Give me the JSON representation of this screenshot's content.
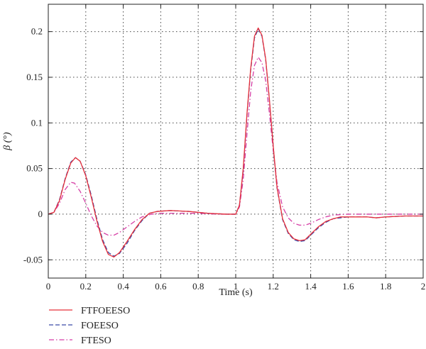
{
  "chart_data": {
    "type": "line",
    "title": "",
    "xlabel": "Time (s)",
    "ylabel": "β (°)",
    "xlim": [
      0,
      2
    ],
    "ylim": [
      -0.07,
      0.23
    ],
    "grid": true,
    "grid_style": "dotted",
    "legend_position": "bottom-left, below plot",
    "x_ticks": [
      "0",
      "0.2",
      "0.4",
      "0.6",
      "0.8",
      "1",
      "1.2",
      "1.4",
      "1.6",
      "1.8",
      "2"
    ],
    "y_ticks": [
      "-0.05",
      "0",
      "0.05",
      "0.1",
      "0.15",
      "0.2"
    ],
    "series": [
      {
        "name": "FTFOEESO",
        "color": "#e8303a",
        "dash": "solid",
        "points": [
          [
            0,
            0
          ],
          [
            0.03,
            0.002
          ],
          [
            0.06,
            0.015
          ],
          [
            0.09,
            0.038
          ],
          [
            0.12,
            0.056
          ],
          [
            0.145,
            0.062
          ],
          [
            0.17,
            0.058
          ],
          [
            0.2,
            0.042
          ],
          [
            0.23,
            0.018
          ],
          [
            0.26,
            -0.008
          ],
          [
            0.29,
            -0.03
          ],
          [
            0.32,
            -0.044
          ],
          [
            0.35,
            -0.047
          ],
          [
            0.38,
            -0.042
          ],
          [
            0.42,
            -0.03
          ],
          [
            0.46,
            -0.017
          ],
          [
            0.5,
            -0.006
          ],
          [
            0.54,
            0.001
          ],
          [
            0.58,
            0.003
          ],
          [
            0.65,
            0.004
          ],
          [
            0.75,
            0.003
          ],
          [
            0.85,
            0.001
          ],
          [
            0.95,
            0
          ],
          [
            1.0,
            0
          ],
          [
            1.02,
            0.01
          ],
          [
            1.04,
            0.05
          ],
          [
            1.06,
            0.11
          ],
          [
            1.08,
            0.16
          ],
          [
            1.1,
            0.195
          ],
          [
            1.12,
            0.204
          ],
          [
            1.14,
            0.196
          ],
          [
            1.16,
            0.17
          ],
          [
            1.18,
            0.125
          ],
          [
            1.2,
            0.075
          ],
          [
            1.22,
            0.03
          ],
          [
            1.25,
            -0.005
          ],
          [
            1.28,
            -0.02
          ],
          [
            1.31,
            -0.027
          ],
          [
            1.34,
            -0.029
          ],
          [
            1.37,
            -0.028
          ],
          [
            1.4,
            -0.022
          ],
          [
            1.44,
            -0.014
          ],
          [
            1.48,
            -0.008
          ],
          [
            1.52,
            -0.005
          ],
          [
            1.56,
            -0.003
          ],
          [
            1.6,
            -0.003
          ],
          [
            1.65,
            -0.003
          ],
          [
            1.7,
            -0.003
          ],
          [
            1.75,
            -0.004
          ],
          [
            1.8,
            -0.003
          ],
          [
            1.9,
            -0.002
          ],
          [
            2.0,
            -0.002
          ]
        ]
      },
      {
        "name": "FOEESO",
        "color": "#3a4aa8",
        "dash": "dashed",
        "points": [
          [
            0,
            0
          ],
          [
            0.03,
            0.002
          ],
          [
            0.06,
            0.016
          ],
          [
            0.09,
            0.039
          ],
          [
            0.12,
            0.057
          ],
          [
            0.145,
            0.062
          ],
          [
            0.17,
            0.058
          ],
          [
            0.2,
            0.043
          ],
          [
            0.23,
            0.02
          ],
          [
            0.26,
            -0.006
          ],
          [
            0.29,
            -0.028
          ],
          [
            0.32,
            -0.042
          ],
          [
            0.35,
            -0.046
          ],
          [
            0.38,
            -0.043
          ],
          [
            0.42,
            -0.032
          ],
          [
            0.46,
            -0.018
          ],
          [
            0.5,
            -0.007
          ],
          [
            0.54,
            0.001
          ],
          [
            0.58,
            0.003
          ],
          [
            0.65,
            0.004
          ],
          [
            0.75,
            0.003
          ],
          [
            0.85,
            0.001
          ],
          [
            0.95,
            0
          ],
          [
            1.0,
            0
          ],
          [
            1.02,
            0.01
          ],
          [
            1.04,
            0.048
          ],
          [
            1.06,
            0.108
          ],
          [
            1.08,
            0.158
          ],
          [
            1.1,
            0.193
          ],
          [
            1.12,
            0.203
          ],
          [
            1.14,
            0.195
          ],
          [
            1.16,
            0.169
          ],
          [
            1.18,
            0.124
          ],
          [
            1.2,
            0.074
          ],
          [
            1.22,
            0.029
          ],
          [
            1.25,
            -0.006
          ],
          [
            1.28,
            -0.021
          ],
          [
            1.31,
            -0.028
          ],
          [
            1.34,
            -0.03
          ],
          [
            1.37,
            -0.029
          ],
          [
            1.4,
            -0.023
          ],
          [
            1.44,
            -0.015
          ],
          [
            1.48,
            -0.009
          ],
          [
            1.52,
            -0.005
          ],
          [
            1.56,
            -0.004
          ],
          [
            1.6,
            -0.003
          ],
          [
            1.65,
            -0.003
          ],
          [
            1.7,
            -0.003
          ],
          [
            1.75,
            -0.004
          ],
          [
            1.8,
            -0.003
          ],
          [
            1.9,
            -0.002
          ],
          [
            2.0,
            -0.002
          ]
        ]
      },
      {
        "name": "FTESO",
        "color": "#d63fa6",
        "dash": "dashdot",
        "points": [
          [
            0,
            0
          ],
          [
            0.03,
            0.002
          ],
          [
            0.06,
            0.012
          ],
          [
            0.09,
            0.027
          ],
          [
            0.12,
            0.035
          ],
          [
            0.14,
            0.034
          ],
          [
            0.17,
            0.025
          ],
          [
            0.2,
            0.012
          ],
          [
            0.23,
            -0.002
          ],
          [
            0.26,
            -0.013
          ],
          [
            0.29,
            -0.02
          ],
          [
            0.32,
            -0.023
          ],
          [
            0.35,
            -0.023
          ],
          [
            0.38,
            -0.02
          ],
          [
            0.42,
            -0.014
          ],
          [
            0.46,
            -0.008
          ],
          [
            0.5,
            -0.003
          ],
          [
            0.55,
            0
          ],
          [
            0.6,
            0.001
          ],
          [
            0.7,
            0.001
          ],
          [
            0.8,
            0.001
          ],
          [
            0.9,
            0
          ],
          [
            1.0,
            0
          ],
          [
            1.02,
            0.008
          ],
          [
            1.04,
            0.038
          ],
          [
            1.06,
            0.088
          ],
          [
            1.08,
            0.135
          ],
          [
            1.1,
            0.163
          ],
          [
            1.12,
            0.172
          ],
          [
            1.14,
            0.166
          ],
          [
            1.16,
            0.146
          ],
          [
            1.18,
            0.11
          ],
          [
            1.2,
            0.07
          ],
          [
            1.22,
            0.035
          ],
          [
            1.25,
            0.008
          ],
          [
            1.28,
            -0.004
          ],
          [
            1.31,
            -0.01
          ],
          [
            1.34,
            -0.012
          ],
          [
            1.37,
            -0.012
          ],
          [
            1.4,
            -0.01
          ],
          [
            1.44,
            -0.006
          ],
          [
            1.48,
            -0.003
          ],
          [
            1.52,
            -0.001
          ],
          [
            1.6,
            0
          ],
          [
            1.7,
            0
          ],
          [
            1.8,
            0
          ],
          [
            1.9,
            0
          ],
          [
            2.0,
            0
          ]
        ]
      }
    ]
  }
}
